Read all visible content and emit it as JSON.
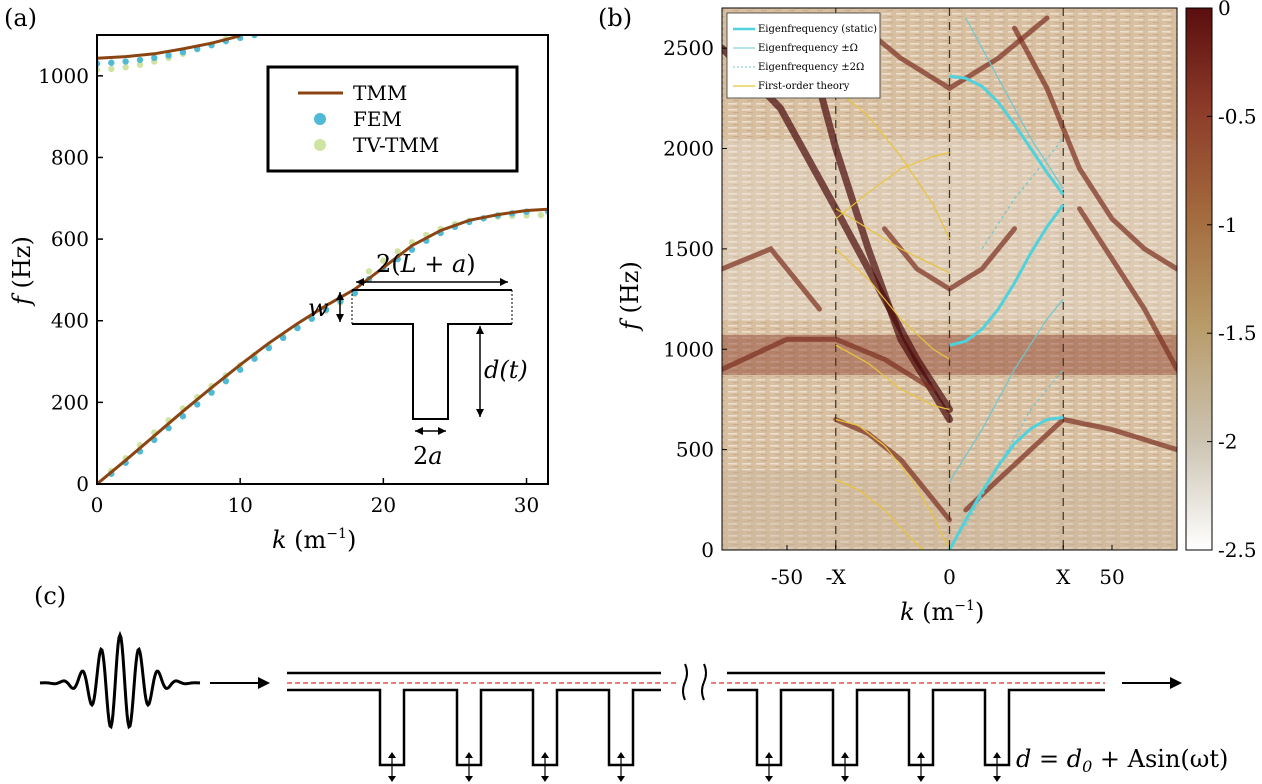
{
  "panel_labels": {
    "a": "(a)",
    "b": "(b)",
    "c": "(c)"
  },
  "chart_data": [
    {
      "panel": "(a)",
      "type": "scatter",
      "xlabel_var": "k",
      "xlabel_unit": " (m",
      "xlabel_exp": "−1",
      "xlabel_close": ")",
      "ylabel_var": "f",
      "ylabel_unit": " (Hz)",
      "xlim": [
        0,
        31.5
      ],
      "ylim": [
        0,
        1100
      ],
      "xticks": [
        "0",
        "10",
        "20",
        "30"
      ],
      "xtick_values": [
        0,
        10,
        20,
        30
      ],
      "yticks": [
        "0",
        "200",
        "400",
        "600",
        "800",
        "1000"
      ],
      "ytick_values": [
        0,
        200,
        400,
        600,
        800,
        1000
      ],
      "legend_position": "top-right",
      "series": [
        {
          "name": "TMM",
          "style": "line",
          "color": "#8B4513",
          "branches": [
            {
              "x": [
                0,
                2,
                4,
                6,
                8,
                10,
                12,
                14,
                16,
                18,
                20,
                22,
                24,
                26,
                28,
                30,
                31.5
              ],
              "y": [
                0,
                58,
                118,
                178,
                236,
                292,
                345,
                393,
                437,
                477,
                530,
                584,
                621,
                646,
                660,
                670,
                673
              ]
            },
            {
              "x": [
                0,
                2,
                4,
                6,
                8,
                10
              ],
              "y": [
                1043,
                1047,
                1054,
                1066,
                1080,
                1098
              ]
            }
          ]
        },
        {
          "name": "FEM",
          "style": "dots",
          "color": "#4FB9D6",
          "branches": [
            {
              "x": [
                0,
                1,
                2,
                3,
                4,
                5,
                6,
                7,
                8,
                9,
                10,
                11,
                12,
                13,
                14,
                15,
                16,
                17,
                18,
                19,
                20,
                21,
                22,
                23,
                24,
                25,
                26,
                27,
                28,
                29,
                30,
                31.5
              ],
              "y": [
                0,
                25,
                52,
                80,
                108,
                137,
                166,
                195,
                224,
                252,
                280,
                307,
                333,
                358,
                382,
                405,
                427,
                448,
                468,
                502,
                527,
                551,
                574,
                596,
                615,
                630,
                642,
                651,
                658,
                663,
                667,
                668
              ]
            },
            {
              "x": [
                0,
                1,
                2,
                3,
                4,
                5,
                6,
                7,
                8,
                9,
                10,
                11
              ],
              "y": [
                1030,
                1032,
                1035,
                1039,
                1044,
                1050,
                1058,
                1066,
                1075,
                1085,
                1093,
                1100
              ]
            }
          ]
        },
        {
          "name": "TV-TMM",
          "style": "dots",
          "color": "#CFE3A2",
          "branches": [
            {
              "x": [
                0,
                1,
                2,
                3,
                4,
                5,
                6,
                7,
                8,
                9,
                10,
                11,
                12,
                13,
                14,
                15,
                16,
                17,
                18,
                19,
                20,
                21,
                22,
                23,
                24,
                25,
                26,
                27,
                28,
                29,
                30,
                31
              ],
              "y": [
                0,
                32,
                63,
                95,
                126,
                156,
                185,
                213,
                240,
                266,
                291,
                316,
                339,
                362,
                384,
                405,
                425,
                445,
                466,
                521,
                547,
                570,
                592,
                610,
                625,
                637,
                645,
                651,
                655,
                657,
                658,
                659
              ]
            },
            {
              "x": [
                0,
                1,
                2,
                3,
                4,
                5,
                6,
                7,
                8,
                9,
                10
              ],
              "y": [
                1015,
                1017,
                1021,
                1027,
                1035,
                1044,
                1054,
                1065,
                1077,
                1090,
                1100
              ]
            }
          ]
        }
      ],
      "inset": {
        "width_label": "2(L + a)",
        "w_label": "w",
        "d_label": "d(t)",
        "two_a_label": "2a"
      }
    },
    {
      "panel": "(b)",
      "type": "heatmap",
      "xlabel_var": "k",
      "xlabel_unit": " (m",
      "xlabel_exp": "−1",
      "xlabel_close": ")",
      "ylabel_var": "f",
      "ylabel_unit": " (Hz)",
      "xlim": [
        -70,
        70
      ],
      "ylim": [
        0,
        2700
      ],
      "xticks": [
        "-50",
        "-X",
        "0",
        "X",
        "50"
      ],
      "xtick_values": [
        -50,
        -35,
        0,
        35,
        50
      ],
      "yticks": [
        "0",
        "500",
        "1000",
        "1500",
        "2000",
        "2500"
      ],
      "ytick_values": [
        0,
        500,
        1000,
        1500,
        2000,
        2500
      ],
      "dashed_verticals": [
        -35,
        0,
        35
      ],
      "colorbar": {
        "range": [
          -2.5,
          0
        ],
        "ticks": [
          "0",
          "-0.5",
          "-1",
          "-1.5",
          "-2",
          "-2.5"
        ],
        "tick_values": [
          0,
          -0.5,
          -1,
          -1.5,
          -2,
          -2.5
        ],
        "colors": [
          "#FFFFFF",
          "#CCC4B2",
          "#B79A67",
          "#A36A3D",
          "#8B3A28",
          "#5A0E0E"
        ]
      },
      "legend_position": "top-left",
      "series": [
        {
          "name": "Eigenfrequency (static)",
          "color": "#4FD2DC",
          "style": "solid-thick",
          "branches": [
            {
              "x": [
                0,
                5,
                10,
                15,
                20,
                25,
                30,
                35
              ],
              "y": [
                0,
                150,
                290,
                420,
                530,
                605,
                650,
                660
              ]
            },
            {
              "x": [
                0,
                5,
                10,
                15,
                20,
                25,
                30,
                35
              ],
              "y": [
                1020,
                1040,
                1100,
                1200,
                1330,
                1480,
                1610,
                1720
              ]
            },
            {
              "x": [
                0,
                5,
                10,
                15,
                20,
                25,
                30,
                35
              ],
              "y": [
                2360,
                2350,
                2310,
                2230,
                2120,
                2000,
                1880,
                1770
              ]
            }
          ]
        },
        {
          "name": "Eigenfrequency  ±Ω",
          "color": "#6FC7CF",
          "style": "solid-thin",
          "branches": [
            {
              "x": [
                0,
                10,
                20,
                30,
                35
              ],
              "y": [
                340,
                600,
                900,
                1150,
                1250
              ]
            },
            {
              "x": [
                5,
                15,
                25,
                35
              ],
              "y": [
                2650,
                2350,
                2050,
                1800
              ]
            }
          ]
        },
        {
          "name": "Eigenfrequency  ±2Ω",
          "color": "#6FC7CF",
          "style": "dotted",
          "branches": [
            {
              "x": [
                5,
                15,
                25,
                35
              ],
              "y": [
                120,
                420,
                700,
                900
              ]
            },
            {
              "x": [
                10,
                20,
                30,
                35
              ],
              "y": [
                1500,
                1750,
                1950,
                2050
              ]
            }
          ]
        },
        {
          "name": "First-order theory",
          "color": "#E8C43A",
          "style": "solid-thin",
          "branches": [
            {
              "x": [
                -35,
                -28,
                -20,
                -12,
                -6,
                0
              ],
              "y": [
                650,
                620,
                520,
                360,
                200,
                0
              ]
            },
            {
              "x": [
                -35,
                -28,
                -20,
                -12,
                -8
              ],
              "y": [
                350,
                300,
                200,
                60,
                0
              ]
            },
            {
              "x": [
                -35,
                -25,
                -15,
                -5,
                0
              ],
              "y": [
                1020,
                930,
                800,
                720,
                700
              ]
            },
            {
              "x": [
                -35,
                -25,
                -15,
                -5,
                0
              ],
              "y": [
                1500,
                1350,
                1150,
                1000,
                950
              ]
            },
            {
              "x": [
                -35,
                -25,
                -15,
                -5,
                0
              ],
              "y": [
                1700,
                1600,
                1500,
                1420,
                1380
              ]
            },
            {
              "x": [
                -35,
                -25,
                -15,
                -5,
                0
              ],
              "y": [
                2300,
                2160,
                1960,
                1720,
                1550
              ]
            },
            {
              "x": [
                -35,
                -25,
                -15,
                -5,
                0
              ],
              "y": [
                1650,
                1780,
                1900,
                1960,
                1980
              ]
            }
          ]
        }
      ]
    }
  ],
  "schematic": {
    "equation": "d = d0 + Asin(ωt)",
    "eq_lhs": "d = d",
    "eq_sub": "0",
    "eq_rhs": " + Asin(ωt)"
  }
}
